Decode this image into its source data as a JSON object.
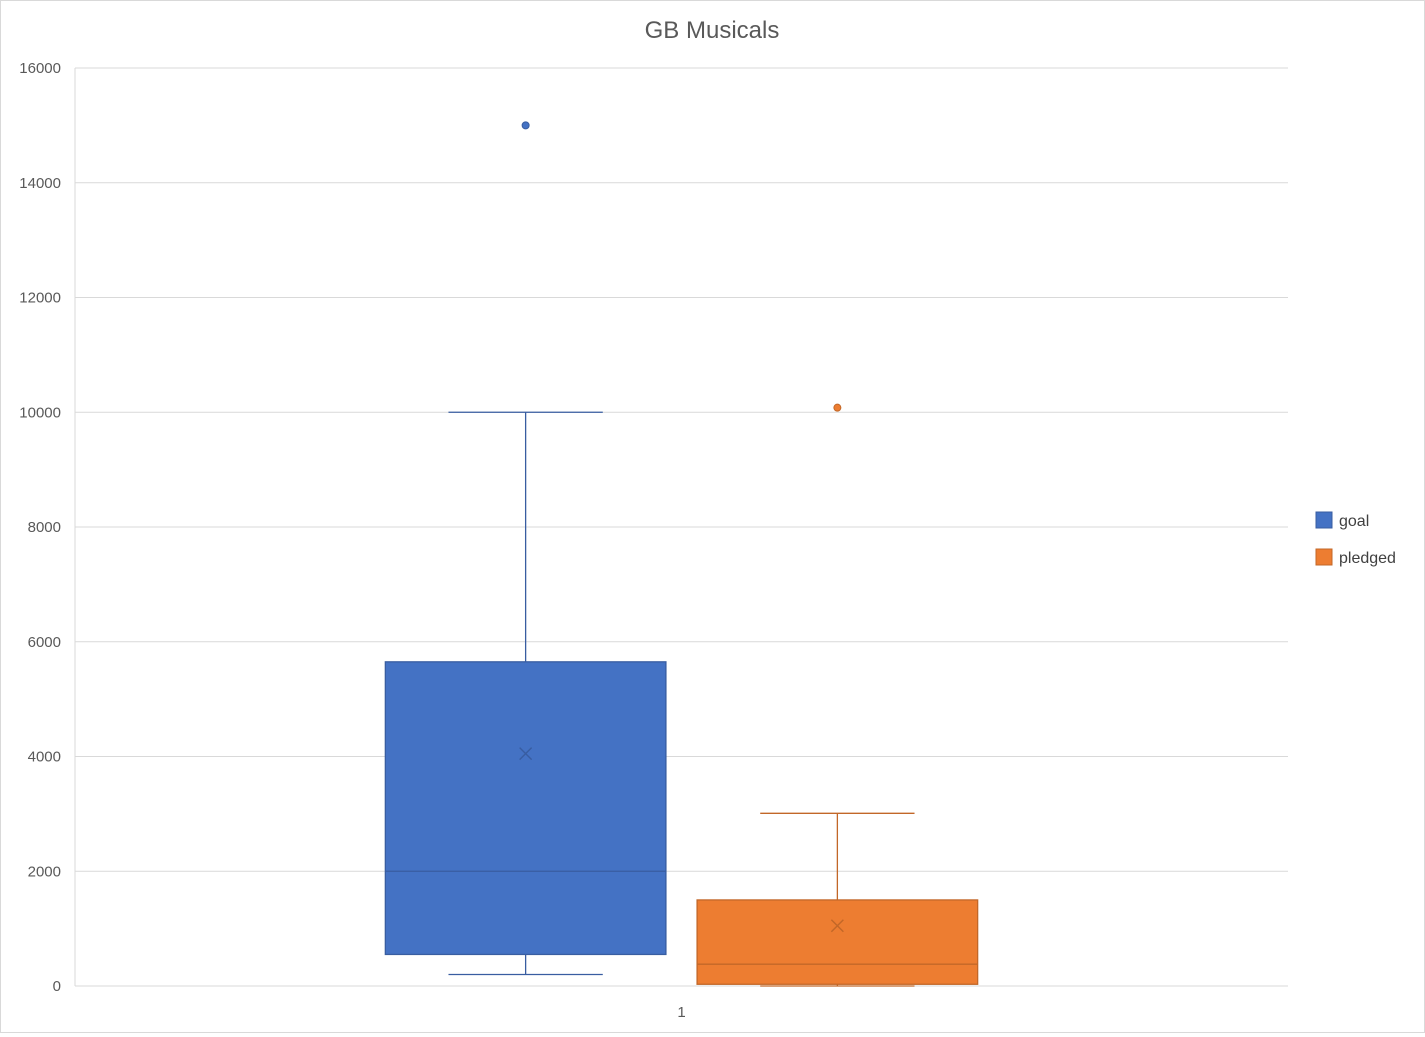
{
  "chart_data": {
    "type": "box",
    "title": "GB Musicals",
    "xlabel": "",
    "ylabel": "",
    "categories": [
      "1"
    ],
    "y_ticks": [
      "0",
      "2000",
      "4000",
      "6000",
      "8000",
      "10000",
      "12000",
      "14000",
      "16000"
    ],
    "ylim": [
      0,
      16000
    ],
    "grid": true,
    "legend_position": "right",
    "series": [
      {
        "name": "goal",
        "color": "#4472c4",
        "min": 200,
        "q1": 550,
        "median": 2000,
        "q3": 5650,
        "max": 10000,
        "mean": 4050,
        "outliers": [
          15000
        ]
      },
      {
        "name": "pledged",
        "color": "#ed7d31",
        "min": 0,
        "q1": 30,
        "median": 380,
        "q3": 1500,
        "max": 3010,
        "mean": 1050,
        "outliers": [
          10080
        ]
      }
    ]
  }
}
